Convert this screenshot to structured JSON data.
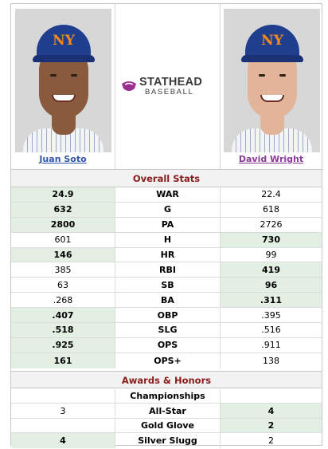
{
  "players": {
    "left": {
      "name": "Juan Soto",
      "cap_logo": "NY"
    },
    "right": {
      "name": "David Wright",
      "cap_logo": "NY"
    }
  },
  "logo": {
    "top": "STATHEAD",
    "bottom": "BASEBALL",
    "colors": {
      "mark": "#9b2f8f",
      "text": "#3b3b3b"
    }
  },
  "sections": {
    "overall": "Overall Stats",
    "awards": "Awards & Honors"
  },
  "colors": {
    "winner_bg": "#e3efe3",
    "section_text": "#8b1a1a",
    "soto_link": "#3355a8",
    "wright_link": "#8a3b97"
  },
  "stats": [
    {
      "label": "WAR",
      "left": "24.9",
      "right": "22.4",
      "winner": "left"
    },
    {
      "label": "G",
      "left": "632",
      "right": "618",
      "winner": "left"
    },
    {
      "label": "PA",
      "left": "2800",
      "right": "2726",
      "winner": "left"
    },
    {
      "label": "H",
      "left": "601",
      "right": "730",
      "winner": "right"
    },
    {
      "label": "HR",
      "left": "146",
      "right": "99",
      "winner": "left"
    },
    {
      "label": "RBI",
      "left": "385",
      "right": "419",
      "winner": "right"
    },
    {
      "label": "SB",
      "left": "63",
      "right": "96",
      "winner": "right"
    },
    {
      "label": "BA",
      "left": ".268",
      "right": ".311",
      "winner": "right"
    },
    {
      "label": "OBP",
      "left": ".407",
      "right": ".395",
      "winner": "left"
    },
    {
      "label": "SLG",
      "left": ".518",
      "right": ".516",
      "winner": "left"
    },
    {
      "label": "OPS",
      "left": ".925",
      "right": ".911",
      "winner": "left"
    },
    {
      "label": "OPS+",
      "left": "161",
      "right": "138",
      "winner": "left"
    }
  ],
  "awards": [
    {
      "label": "Championships",
      "left": "",
      "right": "",
      "winner": ""
    },
    {
      "label": "All-Star",
      "left": "3",
      "right": "4",
      "winner": "right"
    },
    {
      "label": "Gold Glove",
      "left": "",
      "right": "2",
      "winner": "right"
    },
    {
      "label": "Silver Slugg",
      "left": "4",
      "right": "2",
      "winner": "left"
    }
  ]
}
